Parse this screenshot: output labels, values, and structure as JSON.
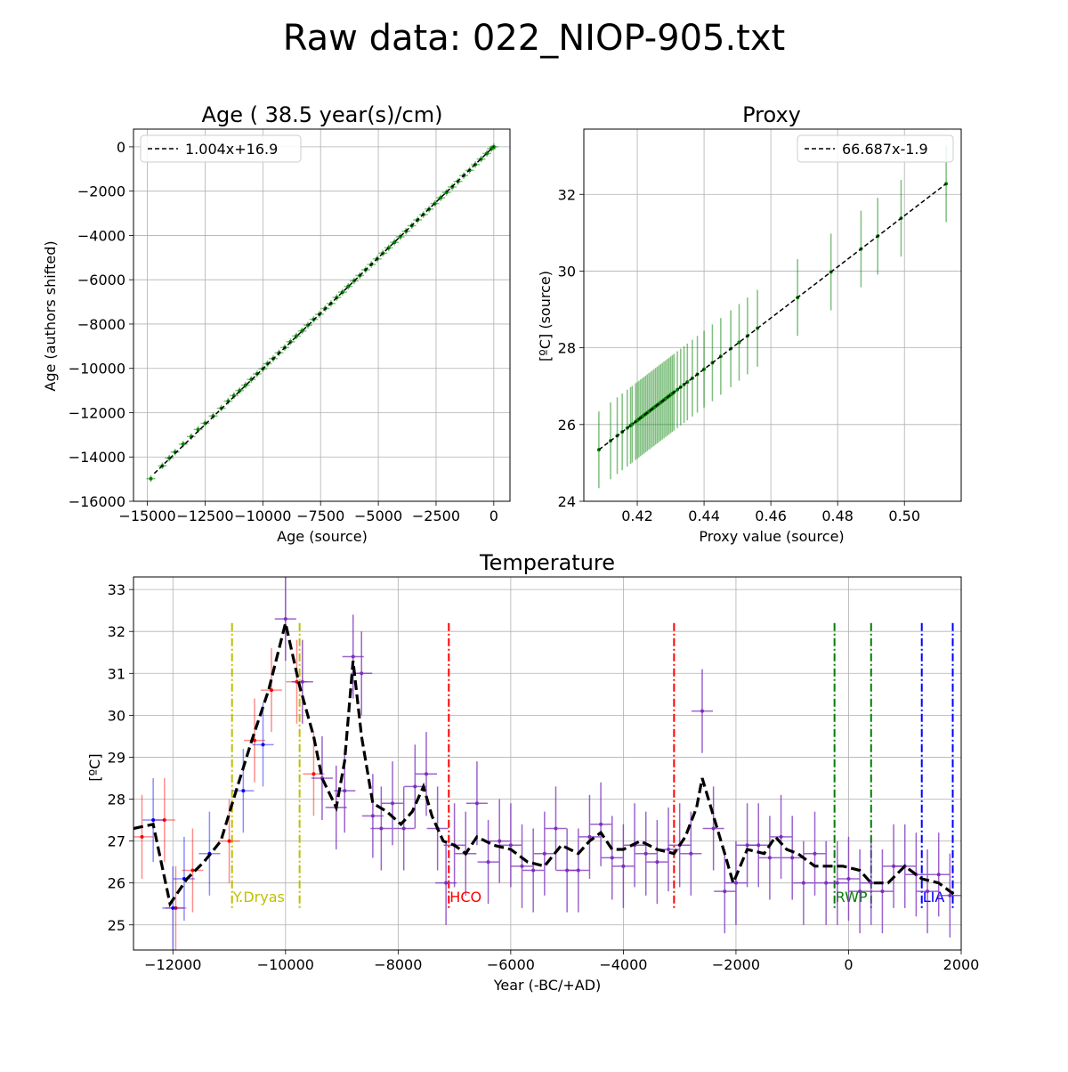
{
  "figure_title": "Raw data: 022_NIOP-905.txt",
  "chart_data": [
    {
      "id": "age",
      "type": "scatter",
      "title": "Age ( 38.5 year(s)/cm)",
      "xlabel": "Age (source)",
      "ylabel": "Age (authors shifted)",
      "xlim": [
        -15600,
        700
      ],
      "ylim": [
        -16000,
        800
      ],
      "xticks": [
        -15000,
        -12500,
        -10000,
        -7500,
        -5000,
        -2500,
        0
      ],
      "xtick_labels": [
        "−15000",
        "−12500",
        "−10000",
        "−7500",
        "−5000",
        "−2500",
        "0"
      ],
      "yticks": [
        -16000,
        -14000,
        -12000,
        -10000,
        -8000,
        -6000,
        -4000,
        -2000,
        0
      ],
      "ytick_labels": [
        "−16000",
        "−14000",
        "−12000",
        "−10000",
        "−8000",
        "−6000",
        "−4000",
        "−2000",
        "0"
      ],
      "grid": true,
      "legend_position": "top-left",
      "colors": {
        "points": "#008000",
        "fit": "#000000"
      },
      "fit": {
        "label": "1.004x+16.9",
        "slope": 1.004,
        "intercept": 16.9,
        "x_range": [
          -14700,
          0
        ]
      },
      "x_error": 190,
      "y_error": 150,
      "points": [
        [
          -14850,
          -14980
        ],
        [
          -14350,
          -14400
        ],
        [
          -14050,
          -14050
        ],
        [
          -13800,
          -13780
        ],
        [
          -13450,
          -13420
        ],
        [
          -13100,
          -13080
        ],
        [
          -12800,
          -12760
        ],
        [
          -12500,
          -12480
        ],
        [
          -12150,
          -12150
        ],
        [
          -11800,
          -11800
        ],
        [
          -11500,
          -11480
        ],
        [
          -11250,
          -11230
        ],
        [
          -11000,
          -11000
        ],
        [
          -10750,
          -10760
        ],
        [
          -10500,
          -10500
        ],
        [
          -10250,
          -10250
        ],
        [
          -10000,
          -10020
        ],
        [
          -9800,
          -9790
        ],
        [
          -9550,
          -9560
        ],
        [
          -9300,
          -9300
        ],
        [
          -9050,
          -9060
        ],
        [
          -8800,
          -8800
        ],
        [
          -8550,
          -8540
        ],
        [
          -8300,
          -8310
        ],
        [
          -8050,
          -8050
        ],
        [
          -7800,
          -7790
        ],
        [
          -7550,
          -7560
        ],
        [
          -7300,
          -7300
        ],
        [
          -7050,
          -7070
        ],
        [
          -6800,
          -6800
        ],
        [
          -6550,
          -6560
        ],
        [
          -6300,
          -6300
        ],
        [
          -6050,
          -6050
        ],
        [
          -5800,
          -5810
        ],
        [
          -5550,
          -5550
        ],
        [
          -5300,
          -5310
        ],
        [
          -5050,
          -5060
        ],
        [
          -4800,
          -4800
        ],
        [
          -4550,
          -4560
        ],
        [
          -4300,
          -4310
        ],
        [
          -4050,
          -4060
        ],
        [
          -3800,
          -3810
        ],
        [
          -3550,
          -3560
        ],
        [
          -3300,
          -3300
        ],
        [
          -3050,
          -3060
        ],
        [
          -2800,
          -2810
        ],
        [
          -2550,
          -2560
        ],
        [
          -2300,
          -2300
        ],
        [
          -2050,
          -2060
        ],
        [
          -1800,
          -1810
        ],
        [
          -1550,
          -1560
        ],
        [
          -1300,
          -1300
        ],
        [
          -1050,
          -1060
        ],
        [
          -800,
          -800
        ],
        [
          -550,
          -550
        ],
        [
          -300,
          -300
        ],
        [
          -100,
          -80
        ],
        [
          0,
          0
        ]
      ]
    },
    {
      "id": "proxy",
      "type": "scatter",
      "title": "Proxy",
      "xlabel": "Proxy value (source)",
      "ylabel": "[ºC] (source)",
      "xlim": [
        0.404,
        0.517
      ],
      "ylim": [
        24,
        33.7
      ],
      "xticks": [
        0.42,
        0.44,
        0.46,
        0.48,
        0.5
      ],
      "xtick_labels": [
        "0.42",
        "0.44",
        "0.46",
        "0.48",
        "0.50"
      ],
      "yticks": [
        24,
        26,
        28,
        30,
        32
      ],
      "ytick_labels": [
        "24",
        "26",
        "28",
        "30",
        "32"
      ],
      "grid": true,
      "legend_position": "top-right",
      "colors": {
        "points": "#008000",
        "fit": "#000000"
      },
      "fit": {
        "label": "66.687x-1.9",
        "slope": 66.687,
        "intercept": -1.9,
        "x_range": [
          0.4085,
          0.5125
        ]
      },
      "y_error": 1.0,
      "x": [
        0.4085,
        0.412,
        0.414,
        0.4155,
        0.417,
        0.418,
        0.4185,
        0.4195,
        0.42,
        0.4205,
        0.421,
        0.4215,
        0.422,
        0.4225,
        0.423,
        0.4235,
        0.424,
        0.4245,
        0.425,
        0.4255,
        0.426,
        0.4265,
        0.427,
        0.4275,
        0.428,
        0.4285,
        0.429,
        0.4295,
        0.43,
        0.4305,
        0.431,
        0.432,
        0.433,
        0.434,
        0.435,
        0.4365,
        0.438,
        0.44,
        0.4425,
        0.445,
        0.448,
        0.4505,
        0.453,
        0.456,
        0.468,
        0.478,
        0.487,
        0.492,
        0.499,
        0.5125
      ]
    },
    {
      "id": "temperature",
      "type": "line",
      "title": "Temperature",
      "xlabel": "Year (-BC/+AD)",
      "ylabel": "[ºC]",
      "xlim": [
        -12700,
        2000
      ],
      "ylim": [
        24.4,
        33.3
      ],
      "xticks": [
        -12000,
        -10000,
        -8000,
        -6000,
        -4000,
        -2000,
        0,
        2000
      ],
      "xtick_labels": [
        "−12000",
        "−10000",
        "−8000",
        "−6000",
        "−4000",
        "−2000",
        "0",
        "2000"
      ],
      "yticks": [
        25,
        26,
        27,
        28,
        29,
        30,
        31,
        32,
        33
      ],
      "ytick_labels": [
        "25",
        "26",
        "27",
        "28",
        "29",
        "30",
        "31",
        "32",
        "33"
      ],
      "grid": true,
      "colors": {
        "red": "#ff0000",
        "blue": "#0000ff",
        "purple": "#7b2fbe",
        "line": "#000000"
      },
      "periods": [
        {
          "label": "Y.Dryas",
          "start": -10950,
          "end": -9750,
          "color": "#bfbf00"
        },
        {
          "label": "HCO",
          "start": -7100,
          "end": -3100,
          "color": "#ff0000"
        },
        {
          "label": "RWP",
          "start": -250,
          "end": 400,
          "color": "#008000"
        },
        {
          "label": "LIA",
          "start": 1300,
          "end": 1850,
          "color": "#0000ff"
        }
      ],
      "x_error": 190,
      "y_error": 1.0,
      "series": [
        {
          "color_key": "red",
          "x": [
            -12550,
            -12150,
            -11950,
            -11650,
            -11000,
            -10550,
            -10250,
            -9800,
            -9500
          ],
          "y": [
            27.1,
            27.5,
            25.4,
            26.3,
            27.0,
            29.4,
            30.6,
            30.8,
            28.6
          ]
        },
        {
          "color_key": "blue",
          "x": [
            -12350,
            -12000,
            -11800,
            -11350,
            -10750,
            -10400
          ],
          "y": [
            27.5,
            25.4,
            26.1,
            26.7,
            28.2,
            29.3
          ]
        },
        {
          "color_key": "purple",
          "x": [
            -10000,
            -9700,
            -9350,
            -9100,
            -8950,
            -8800,
            -8650,
            -8450,
            -8300,
            -8100,
            -7900,
            -7700,
            -7500,
            -7300,
            -7150,
            -7000,
            -6800,
            -6600,
            -6400,
            -6200,
            -6000,
            -5800,
            -5600,
            -5400,
            -5200,
            -5000,
            -4800,
            -4600,
            -4400,
            -4200,
            -4000,
            -3800,
            -3600,
            -3400,
            -3200,
            -3000,
            -2800,
            -2600,
            -2400,
            -2200,
            -2000,
            -1800,
            -1600,
            -1400,
            -1200,
            -1000,
            -800,
            -600,
            -400,
            -200,
            0,
            200,
            400,
            600,
            800,
            1000,
            1200,
            1400,
            1600,
            1800
          ],
          "y": [
            32.3,
            30.8,
            28.5,
            27.8,
            28.2,
            31.4,
            31.0,
            27.6,
            27.3,
            27.9,
            27.3,
            28.3,
            28.6,
            27.3,
            26.0,
            26.9,
            26.7,
            27.9,
            26.5,
            27.0,
            26.9,
            26.4,
            26.3,
            26.7,
            27.3,
            26.3,
            26.3,
            27.1,
            27.4,
            26.6,
            26.4,
            26.9,
            26.7,
            26.5,
            26.8,
            26.9,
            26.7,
            30.1,
            27.3,
            25.8,
            26.0,
            26.9,
            26.9,
            26.6,
            27.1,
            26.6,
            26.0,
            26.7,
            26.0,
            26.0,
            26.1,
            25.8,
            26.0,
            25.8,
            26.4,
            26.4,
            26.2,
            25.8,
            26.2,
            25.7
          ]
        }
      ],
      "smoothed": {
        "x": [
          -12700,
          -12350,
          -12050,
          -11750,
          -11450,
          -11150,
          -10900,
          -10600,
          -10300,
          -10000,
          -9750,
          -9500,
          -9350,
          -9100,
          -8950,
          -8800,
          -8650,
          -8450,
          -8200,
          -7950,
          -7750,
          -7550,
          -7400,
          -7200,
          -7000,
          -6800,
          -6600,
          -6300,
          -6000,
          -5700,
          -5400,
          -5100,
          -4800,
          -4600,
          -4400,
          -4200,
          -4000,
          -3700,
          -3400,
          -3100,
          -2900,
          -2700,
          -2600,
          -2400,
          -2200,
          -2050,
          -1800,
          -1500,
          -1300,
          -1100,
          -900,
          -600,
          -300,
          -100,
          200,
          400,
          700,
          1000,
          1300,
          1600,
          1900
        ],
        "y": [
          27.3,
          27.4,
          25.5,
          26.1,
          26.5,
          27.0,
          28.1,
          29.4,
          30.6,
          32.2,
          30.7,
          29.5,
          28.5,
          27.8,
          28.9,
          31.3,
          29.5,
          27.9,
          27.7,
          27.4,
          27.7,
          28.3,
          27.6,
          27.0,
          26.9,
          26.7,
          27.1,
          26.9,
          26.8,
          26.5,
          26.4,
          26.9,
          26.7,
          27.0,
          27.2,
          26.8,
          26.8,
          27.0,
          26.8,
          26.7,
          27.1,
          27.8,
          28.5,
          27.6,
          26.7,
          26.0,
          26.8,
          26.7,
          27.1,
          26.8,
          26.7,
          26.4,
          26.4,
          26.4,
          26.3,
          26.0,
          26.0,
          26.4,
          26.1,
          26.0,
          25.7
        ]
      }
    }
  ]
}
